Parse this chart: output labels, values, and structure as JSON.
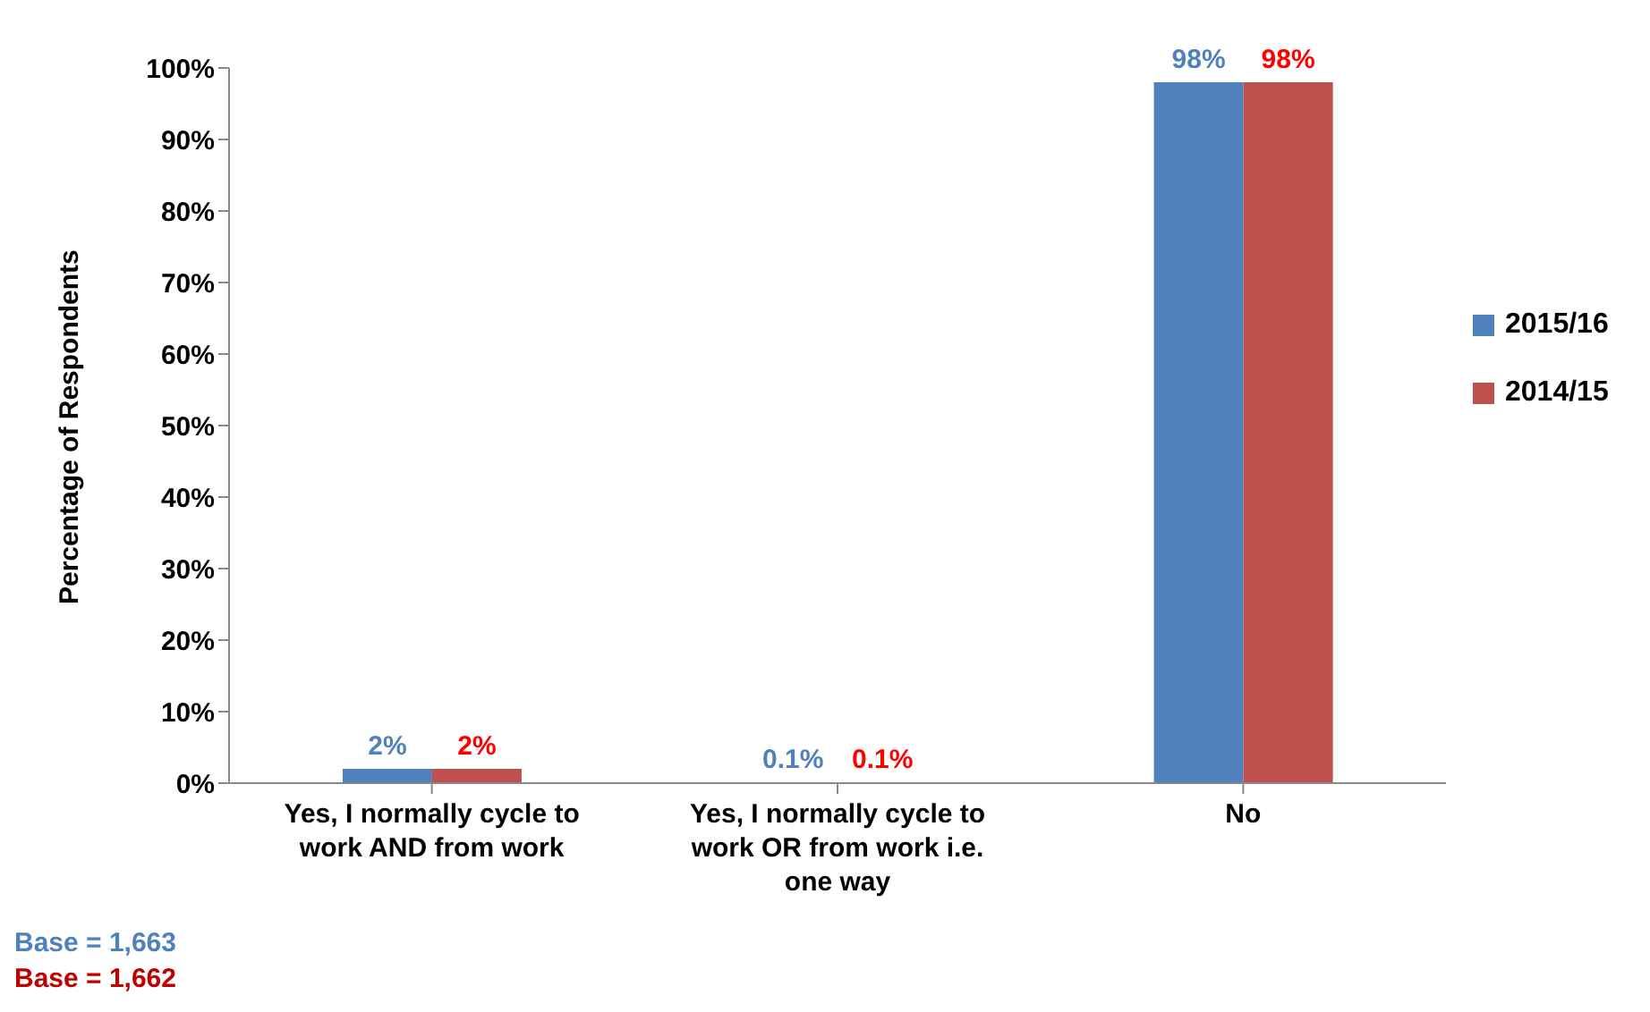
{
  "chart_data": {
    "type": "bar",
    "ylabel": "Percentage of Respondents",
    "categories": [
      "Yes, I normally cycle to work AND from work",
      "Yes, I normally cycle to work OR from work i.e. one way",
      "No"
    ],
    "series": [
      {
        "name": "2015/16",
        "color": "#4f81bd",
        "values": [
          2,
          0.1,
          98
        ],
        "value_labels": [
          "2%",
          "0.1%",
          "98%"
        ]
      },
      {
        "name": "2014/15",
        "color": "#c0504d",
        "values": [
          2,
          0.1,
          98
        ],
        "value_labels": [
          "2%",
          "0.1%",
          "98%"
        ]
      }
    ],
    "ylim": [
      0,
      100
    ],
    "yticks": [
      {
        "value": 0,
        "label": "0%"
      },
      {
        "value": 10,
        "label": "10%"
      },
      {
        "value": 20,
        "label": "20%"
      },
      {
        "value": 30,
        "label": "30%"
      },
      {
        "value": 40,
        "label": "40%"
      },
      {
        "value": 50,
        "label": "50%"
      },
      {
        "value": 60,
        "label": "60%"
      },
      {
        "value": 70,
        "label": "70%"
      },
      {
        "value": 80,
        "label": "80%"
      },
      {
        "value": 90,
        "label": "90%"
      },
      {
        "value": 100,
        "label": "100%"
      }
    ],
    "legend": "right",
    "annotations": [
      "Base = 1,663",
      "Base = 1,662"
    ]
  }
}
